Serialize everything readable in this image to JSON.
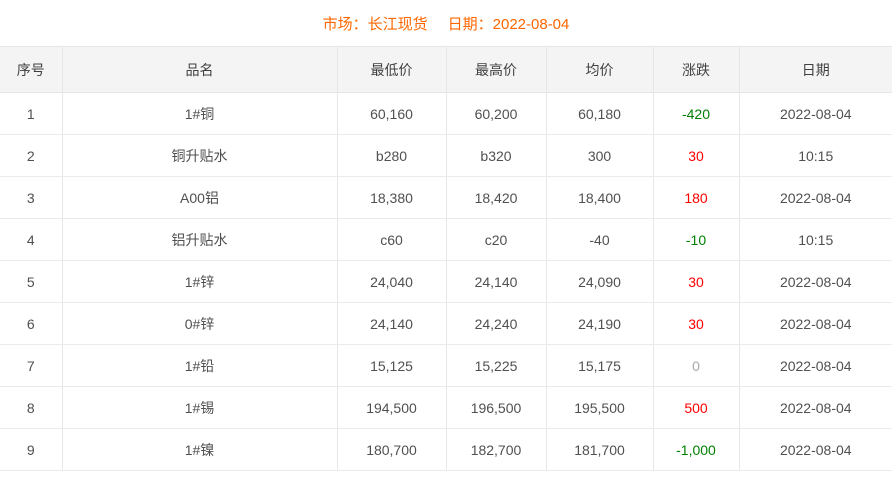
{
  "title_bar": {
    "market": "市场：长江现货",
    "date": "日期：2022-08-04"
  },
  "table": {
    "columns": [
      "序号",
      "品名",
      "最低价",
      "最高价",
      "均价",
      "涨跌",
      "日期"
    ],
    "rows": [
      {
        "seq": "1",
        "name": "1#铜",
        "low": "60,160",
        "high": "60,200",
        "avg": "60,180",
        "change": "-420",
        "trend": "down",
        "date": "2022-08-04"
      },
      {
        "seq": "2",
        "name": "铜升贴水",
        "low": "b280",
        "high": "b320",
        "avg": "300",
        "change": "30",
        "trend": "up",
        "date": "10:15"
      },
      {
        "seq": "3",
        "name": "A00铝",
        "low": "18,380",
        "high": "18,420",
        "avg": "18,400",
        "change": "180",
        "trend": "up",
        "date": "2022-08-04"
      },
      {
        "seq": "4",
        "name": "铝升贴水",
        "low": "c60",
        "high": "c20",
        "avg": "-40",
        "change": "-10",
        "trend": "down",
        "date": "10:15"
      },
      {
        "seq": "5",
        "name": "1#锌",
        "low": "24,040",
        "high": "24,140",
        "avg": "24,090",
        "change": "30",
        "trend": "up",
        "date": "2022-08-04"
      },
      {
        "seq": "6",
        "name": "0#锌",
        "low": "24,140",
        "high": "24,240",
        "avg": "24,190",
        "change": "30",
        "trend": "up",
        "date": "2022-08-04"
      },
      {
        "seq": "7",
        "name": "1#铅",
        "low": "15,125",
        "high": "15,225",
        "avg": "15,175",
        "change": "0",
        "trend": "flat",
        "date": "2022-08-04"
      },
      {
        "seq": "8",
        "name": "1#锡",
        "low": "194,500",
        "high": "196,500",
        "avg": "195,500",
        "change": "500",
        "trend": "up",
        "date": "2022-08-04"
      },
      {
        "seq": "9",
        "name": "1#镍",
        "low": "180,700",
        "high": "182,700",
        "avg": "181,700",
        "change": "-1,000",
        "trend": "down",
        "date": "2022-08-04"
      }
    ]
  },
  "colors": {
    "title": "#ff6600",
    "up": "#ff0000",
    "down": "#008000",
    "flat": "#a8a8a8",
    "header_bg": "#f4f4f4",
    "border": "#e6e6e6",
    "cell_text": "#505050"
  }
}
